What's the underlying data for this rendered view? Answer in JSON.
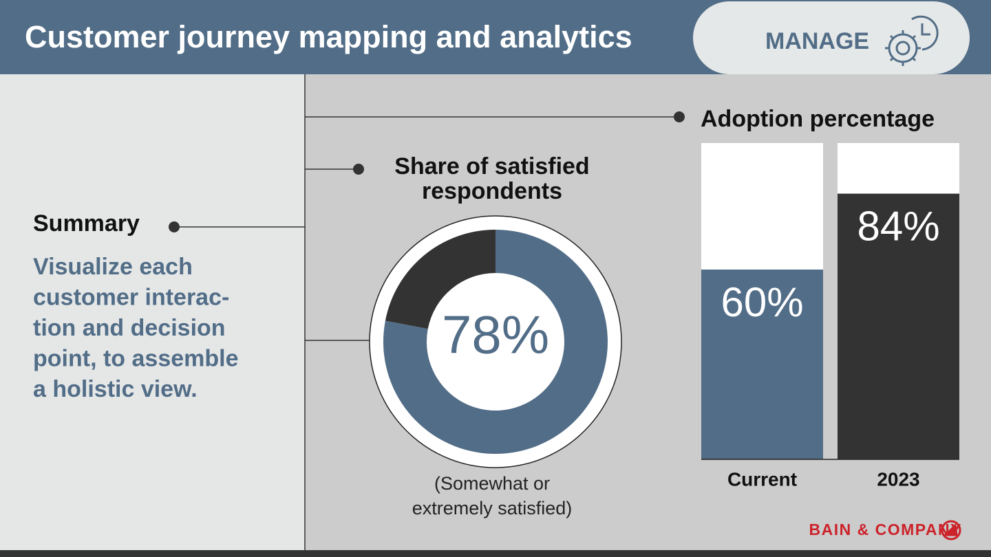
{
  "header": {
    "title": "Customer journey mapping and analytics",
    "badge": "MANAGE"
  },
  "summary": {
    "label": "Summary",
    "lines": [
      "Visualize each",
      "customer interac-",
      "tion and decision",
      "point, to assemble",
      "a holistic view."
    ]
  },
  "brand": "BAIN & COMPANY",
  "chart_data": [
    {
      "type": "donut",
      "title_lines": [
        "Share of satisfied",
        "respondents"
      ],
      "values": [
        78
      ],
      "value_labels": [
        "78%"
      ],
      "ylim": [
        0,
        100
      ],
      "colors": [
        "#526d87",
        "#333333"
      ],
      "note_lines": [
        "(Somewhat or",
        "extremely satisfied)"
      ]
    },
    {
      "type": "bar",
      "title": "Adoption percentage",
      "categories": [
        "Current",
        "2023"
      ],
      "values": [
        60,
        84
      ],
      "value_labels": [
        "60%",
        "84%"
      ],
      "ylim": [
        0,
        100
      ],
      "colors": [
        "#526d87",
        "#333333"
      ]
    }
  ]
}
